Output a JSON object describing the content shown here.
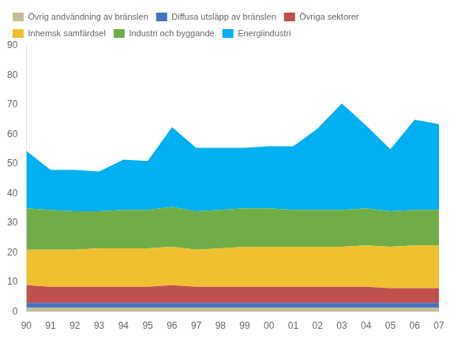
{
  "chart_data": {
    "type": "area",
    "stacked": true,
    "grid": false,
    "legend": "upper left",
    "categories": [
      "90",
      "91",
      "92",
      "93",
      "94",
      "95",
      "96",
      "97",
      "98",
      "99",
      "00",
      "01",
      "02",
      "03",
      "04",
      "05",
      "06",
      "07"
    ],
    "series": [
      {
        "name": "Övrig andvändning av bränslen",
        "color": "#C4BD97",
        "values": [
          1.5,
          1.5,
          1.5,
          1.5,
          1.5,
          1.5,
          1.5,
          1.5,
          1.5,
          1.5,
          1.5,
          1.5,
          1.5,
          1.5,
          1.5,
          1.5,
          1.5,
          1.5
        ]
      },
      {
        "name": "Diffusa utsläpp av bränslen",
        "color": "#4472C4",
        "values": [
          1.5,
          1.5,
          1.5,
          1.5,
          1.5,
          1.5,
          1.5,
          1.5,
          1.5,
          1.5,
          1.5,
          1.5,
          1.5,
          1.5,
          1.5,
          1.5,
          1.5,
          1.5
        ]
      },
      {
        "name": "Övriga sektorer",
        "color": "#C0504D",
        "values": [
          6.0,
          5.5,
          5.5,
          5.5,
          5.5,
          5.5,
          6.0,
          5.5,
          5.5,
          5.5,
          5.5,
          5.5,
          5.5,
          5.5,
          5.5,
          5.0,
          5.0,
          5.0
        ]
      },
      {
        "name": "Inhemsk samfärdsel",
        "color": "#F0C031",
        "values": [
          12.0,
          12.5,
          12.5,
          13.0,
          13.0,
          13.0,
          13.0,
          12.5,
          13.0,
          13.5,
          13.5,
          13.5,
          13.5,
          13.5,
          14.0,
          14.0,
          14.5,
          14.5
        ]
      },
      {
        "name": "Industri och byggande",
        "color": "#70AD47",
        "values": [
          14.0,
          13.5,
          13.0,
          12.5,
          13.0,
          13.0,
          13.5,
          13.0,
          13.0,
          13.0,
          13.0,
          12.5,
          12.5,
          12.5,
          12.5,
          12.0,
          12.0,
          12.0
        ]
      },
      {
        "name": "Energiindustri",
        "color": "#00B0F0",
        "values": [
          19.5,
          13.5,
          14.0,
          13.5,
          17.0,
          16.5,
          27.0,
          21.5,
          21.0,
          20.5,
          21.0,
          21.5,
          27.5,
          36.0,
          28.0,
          21.0,
          30.5,
          29.0
        ]
      }
    ],
    "ylim": [
      0,
      90
    ],
    "yticks": [
      0,
      10,
      20,
      30,
      40,
      50,
      60,
      70,
      80,
      90
    ]
  }
}
